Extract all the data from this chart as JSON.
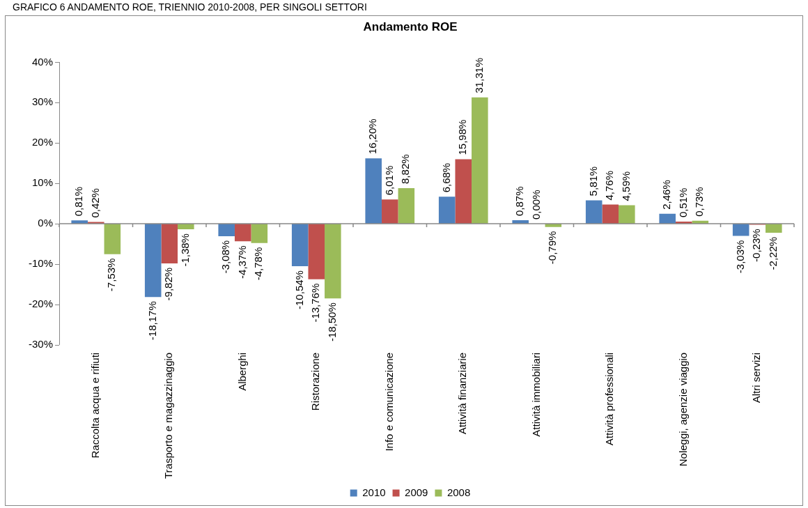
{
  "chart_data": {
    "type": "bar",
    "title": "Andamento ROE",
    "annotations": [
      "GRAFICO 6 ANDAMENTO ROE, TRIENNIO 2010-2008, PER SINGOLI SETTORI"
    ],
    "categories": [
      "Raccolta acqua e rifiuti",
      "Trasporto e magazzinaggio",
      "Alberghi",
      "Ristorazione",
      "Info e comunicazione",
      "Attività finanziarie",
      "Attività immobiliari",
      "Attività professionali",
      "Noleggi, agenzie viaggio",
      "Altri servizi"
    ],
    "series": [
      {
        "name": "2010",
        "color": "#4f81bd",
        "values": [
          0.81,
          -18.17,
          -3.08,
          -10.54,
          16.2,
          6.68,
          0.87,
          5.81,
          2.46,
          -3.03
        ],
        "value_labels": [
          "0,81%",
          "-18,17%",
          "-3,08%",
          "-10,54%",
          "16,20%",
          "6,68%",
          "0,87%",
          "5,81%",
          "2,46%",
          "-3,03%"
        ]
      },
      {
        "name": "2009",
        "color": "#c0504d",
        "values": [
          0.42,
          -9.82,
          -4.37,
          -13.76,
          6.01,
          15.98,
          0,
          4.76,
          0.51,
          -0.23
        ],
        "value_labels": [
          "0,42%",
          "-9,82%",
          "-4,37%",
          "-13,76%",
          "6,01%",
          "15,98%",
          "0,00%",
          "4,76%",
          "0,51%",
          "-0,23%"
        ]
      },
      {
        "name": "2008",
        "color": "#9bbb59",
        "values": [
          -7.53,
          -1.38,
          -4.78,
          -18.5,
          8.82,
          31.31,
          -0.79,
          4.59,
          0.73,
          -2.22
        ],
        "value_labels": [
          "-7,53%",
          "-1,38%",
          "-4,78%",
          "-18,50%",
          "8,82%",
          "31,31%",
          "-0,79%",
          "4,59%",
          "0,73%",
          "-2,22%"
        ]
      }
    ],
    "ylim": [
      -30,
      40
    ],
    "yticks": [
      {
        "value": -30,
        "label": "-30%"
      },
      {
        "value": -20,
        "label": "-20%"
      },
      {
        "value": -10,
        "label": "-10%"
      },
      {
        "value": 0,
        "label": "0%"
      },
      {
        "value": 10,
        "label": "10%"
      },
      {
        "value": 20,
        "label": "20%"
      },
      {
        "value": 30,
        "label": "30%"
      },
      {
        "value": 40,
        "label": "40%"
      }
    ],
    "ref_lines": [
      {
        "axis": "y",
        "value": 0,
        "color": "#888888"
      }
    ],
    "grid": false,
    "legend": "bottom"
  }
}
